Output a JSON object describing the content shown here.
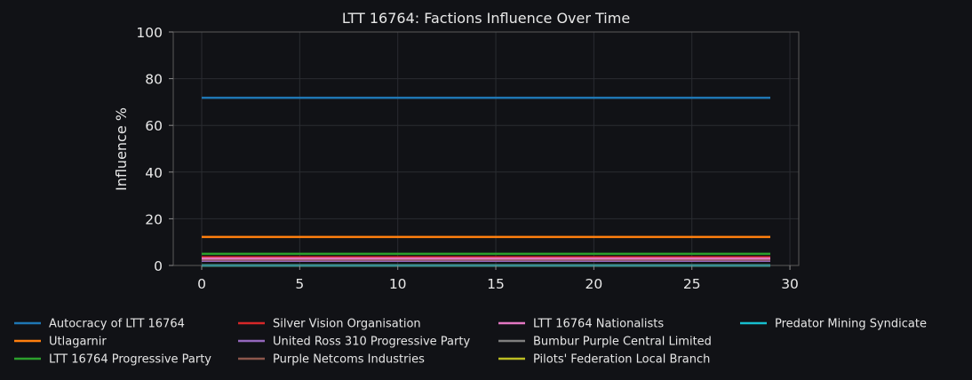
{
  "chart_data": {
    "type": "line",
    "title": "LTT 16764: Factions Influence Over Time",
    "xlabel": "",
    "ylabel": "Influence %",
    "xlim": [
      -1.45,
      30.45
    ],
    "ylim": [
      0,
      100
    ],
    "xticks": [
      0,
      5,
      10,
      15,
      20,
      25,
      30
    ],
    "yticks": [
      0,
      20,
      40,
      60,
      80,
      100
    ],
    "x_range": [
      0,
      29
    ],
    "grid": true,
    "legend_position": "bottom",
    "series": [
      {
        "name": "Autocracy of LTT 16764",
        "color": "#1f77b4",
        "value": 71.8
      },
      {
        "name": "Utlagarnir",
        "color": "#ff7f0e",
        "value": 12.2
      },
      {
        "name": "LTT 16764 Progressive Party",
        "color": "#2ca02c",
        "value": 5.0
      },
      {
        "name": "Silver Vision Organisation",
        "color": "#d62728",
        "value": 3.5
      },
      {
        "name": "United Ross 310 Progressive Party",
        "color": "#9467bd",
        "value": 2.0
      },
      {
        "name": "Purple Netcoms Industries",
        "color": "#8c564b",
        "value": 2.5
      },
      {
        "name": "LTT 16764 Nationalists",
        "color": "#e377c2",
        "value": 3.0
      },
      {
        "name": "Bumbur Purple Central Limited",
        "color": "#7f7f7f",
        "value": 0.0
      },
      {
        "name": "Pilots' Federation Local Branch",
        "color": "#bcbd22",
        "value": 0.0
      },
      {
        "name": "Predator Mining Syndicate",
        "color": "#17becf",
        "value": 0.0
      }
    ]
  }
}
